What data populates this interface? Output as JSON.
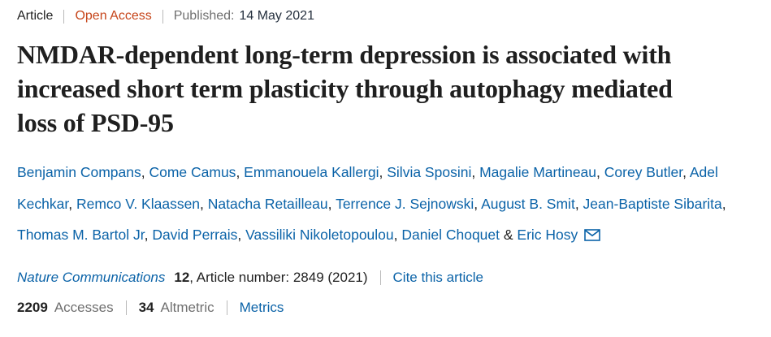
{
  "meta_bar": {
    "type_label": "Article",
    "access_label": "Open Access",
    "published_label": "Published:",
    "published_date": "14 May 2021"
  },
  "title": "NMDAR-dependent long-term depression is associated with increased short term plasticity through autophagy mediated loss of PSD-95",
  "authors": [
    "Benjamin Compans",
    "Come Camus",
    "Emmanouela Kallergi",
    "Silvia Sposini",
    "Magalie Martineau",
    "Corey Butler",
    "Adel Kechkar",
    "Remco V. Klaassen",
    "Natacha Retailleau",
    "Terrence J. Sejnowski",
    "August B. Smit",
    "Jean-Baptiste Sibarita",
    "Thomas M. Bartol Jr",
    "David Perrais",
    "Vassiliki Nikoletopoulou",
    "Daniel Choquet",
    "Eric Hosy"
  ],
  "journal": {
    "name": "Nature Communications",
    "volume": "12",
    "article_info": ", Article number: 2849 (2021)",
    "cite_link": "Cite this article"
  },
  "metrics": {
    "accesses_count": "2209",
    "accesses_label": "Accesses",
    "altmetric_count": "34",
    "altmetric_label": "Altmetric",
    "metrics_link": "Metrics"
  },
  "icons": {
    "email_icon": "email-envelope-icon"
  },
  "colors": {
    "link_blue": "#0b63a8",
    "open_access_orange": "#c6451a",
    "text_dark": "#222222",
    "text_gray": "#6f6f6f"
  }
}
